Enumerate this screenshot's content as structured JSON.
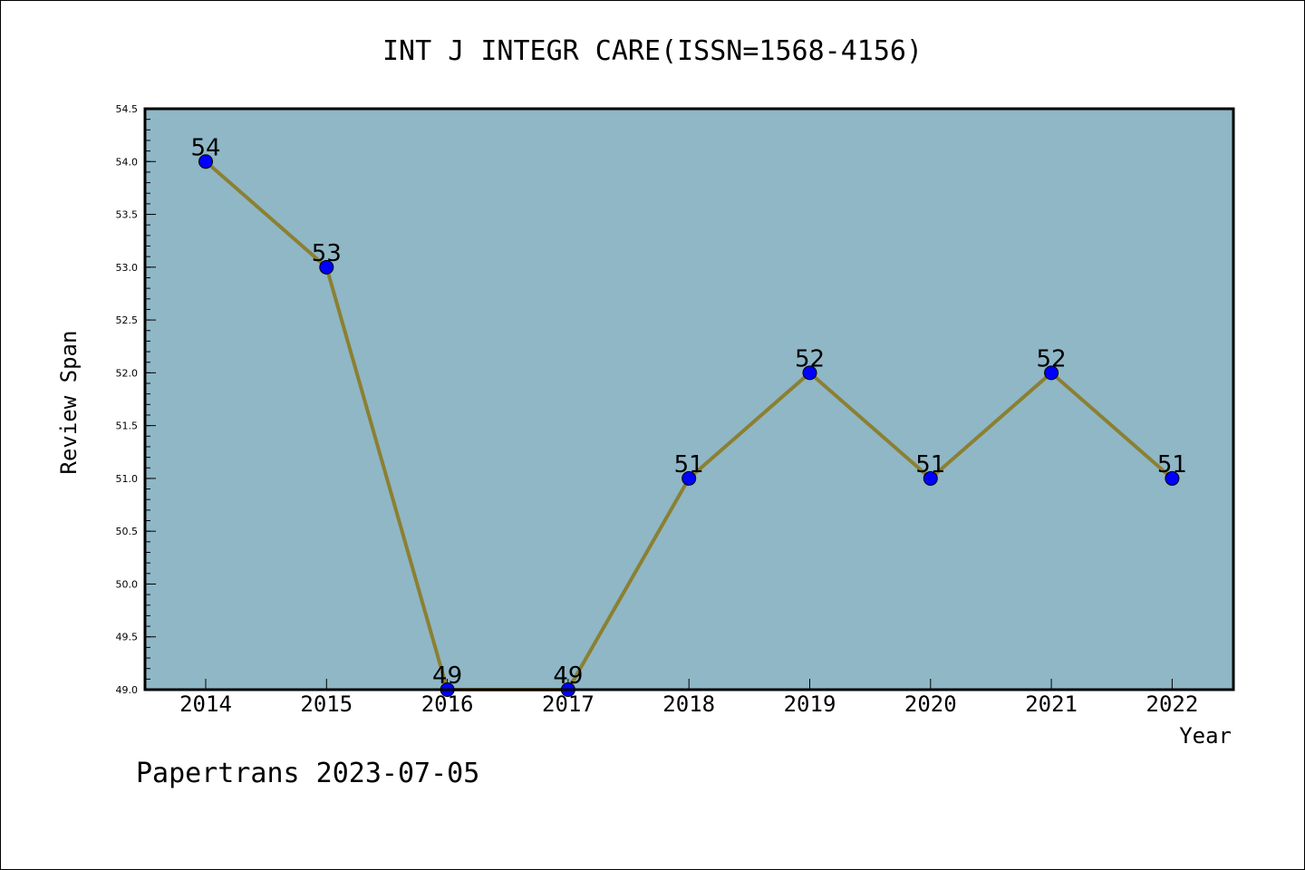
{
  "chart_data": {
    "type": "line",
    "title": "INT J INTEGR CARE(ISSN=1568-4156)",
    "xlabel": "Year",
    "ylabel": "Review Span",
    "categories": [
      "2014",
      "2015",
      "2016",
      "2017",
      "2018",
      "2019",
      "2020",
      "2021",
      "2022"
    ],
    "series": [
      {
        "values": [
          54,
          53,
          49,
          49,
          51,
          52,
          51,
          52,
          51
        ],
        "data_labels": [
          "54",
          "53",
          "49",
          "49",
          "51",
          "52",
          "51",
          "52",
          "51"
        ]
      }
    ],
    "ylim": [
      49.0,
      54.5
    ],
    "yticks": [
      "49.0",
      "49.5",
      "50.0",
      "50.5",
      "51.0",
      "51.5",
      "52.0",
      "52.5",
      "53.0",
      "53.5",
      "54.0",
      "54.5"
    ],
    "grid": false,
    "colors": {
      "plot_background": "#8fb7c6",
      "line": "#8b8032",
      "marker": "#0000ff"
    }
  },
  "footer": "Papertrans 2023-07-05"
}
